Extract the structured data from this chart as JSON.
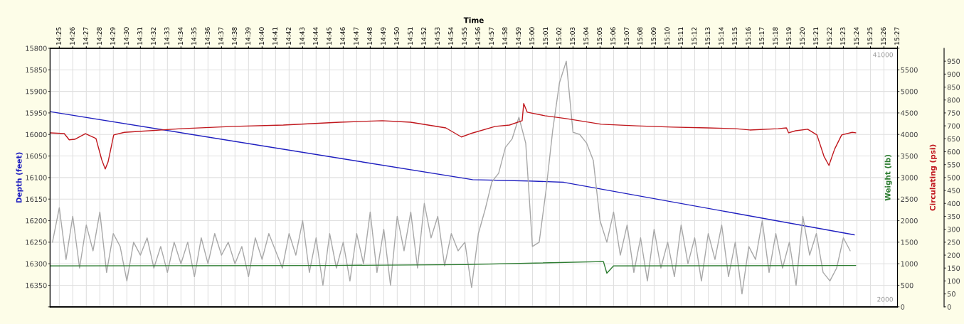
{
  "chart_data": {
    "type": "line",
    "xlabel": "Time",
    "ylabel": "Depth (feet)",
    "y2label": "Weight (lb)",
    "y3label": "Circulating (psi)",
    "xlim": [
      14.4054,
      15.45
    ],
    "xticks": [
      {
        "value": 14.4167,
        "label": "14:25"
      },
      {
        "value": 14.4333,
        "label": "14:26"
      },
      {
        "value": 14.45,
        "label": "14:27"
      },
      {
        "value": 14.4667,
        "label": "14:28"
      },
      {
        "value": 14.4833,
        "label": "14:29"
      },
      {
        "value": 14.5,
        "label": "14:30"
      },
      {
        "value": 14.5167,
        "label": "14:31"
      },
      {
        "value": 14.5333,
        "label": "14:32"
      },
      {
        "value": 14.55,
        "label": "14:33"
      },
      {
        "value": 14.5667,
        "label": "14:34"
      },
      {
        "value": 14.5833,
        "label": "14:35"
      },
      {
        "value": 14.6,
        "label": "14:36"
      },
      {
        "value": 14.6167,
        "label": "14:37"
      },
      {
        "value": 14.6333,
        "label": "14:38"
      },
      {
        "value": 14.65,
        "label": "14:39"
      },
      {
        "value": 14.6667,
        "label": "14:40"
      },
      {
        "value": 14.6833,
        "label": "14:41"
      },
      {
        "value": 14.7,
        "label": "14:42"
      },
      {
        "value": 14.7167,
        "label": "14:43"
      },
      {
        "value": 14.7333,
        "label": "14:44"
      },
      {
        "value": 14.75,
        "label": "14:45"
      },
      {
        "value": 14.7667,
        "label": "14:46"
      },
      {
        "value": 14.7833,
        "label": "14:47"
      },
      {
        "value": 14.8,
        "label": "14:48"
      },
      {
        "value": 14.8167,
        "label": "14:49"
      },
      {
        "value": 14.8333,
        "label": "14:50"
      },
      {
        "value": 14.85,
        "label": "14:51"
      },
      {
        "value": 14.8667,
        "label": "14:52"
      },
      {
        "value": 14.8833,
        "label": "14:53"
      },
      {
        "value": 14.9,
        "label": "14:54"
      },
      {
        "value": 14.9167,
        "label": "14:55"
      },
      {
        "value": 14.9333,
        "label": "14:56"
      },
      {
        "value": 14.95,
        "label": "14:57"
      },
      {
        "value": 14.9667,
        "label": "14:58"
      },
      {
        "value": 14.9833,
        "label": "14:59"
      },
      {
        "value": 15.0,
        "label": "15:00"
      },
      {
        "value": 15.0167,
        "label": "15:01"
      },
      {
        "value": 15.0333,
        "label": "15:02"
      },
      {
        "value": 15.05,
        "label": "15:03"
      },
      {
        "value": 15.0667,
        "label": "15:04"
      },
      {
        "value": 15.0833,
        "label": "15:05"
      },
      {
        "value": 15.1,
        "label": "15:06"
      },
      {
        "value": 15.1167,
        "label": "15:07"
      },
      {
        "value": 15.1333,
        "label": "15:08"
      },
      {
        "value": 15.15,
        "label": "15:09"
      },
      {
        "value": 15.1667,
        "label": "15:10"
      },
      {
        "value": 15.1833,
        "label": "15:11"
      },
      {
        "value": 15.2,
        "label": "15:12"
      },
      {
        "value": 15.2167,
        "label": "15:13"
      },
      {
        "value": 15.2333,
        "label": "15:14"
      },
      {
        "value": 15.25,
        "label": "15:15"
      },
      {
        "value": 15.2667,
        "label": "15:16"
      },
      {
        "value": 15.2833,
        "label": "15:17"
      },
      {
        "value": 15.3,
        "label": "15:18"
      },
      {
        "value": 15.3167,
        "label": "15:19"
      },
      {
        "value": 15.3333,
        "label": "15:20"
      },
      {
        "value": 15.35,
        "label": "15:21"
      },
      {
        "value": 15.3667,
        "label": "15:22"
      },
      {
        "value": 15.3833,
        "label": "15:23"
      },
      {
        "value": 15.4,
        "label": "15:24"
      },
      {
        "value": 15.4167,
        "label": "15:25"
      },
      {
        "value": 15.4333,
        "label": "15:26"
      },
      {
        "value": 15.45,
        "label": "15:27"
      }
    ],
    "ylim": [
      16400,
      15800
    ],
    "yticks": [
      15800,
      15850,
      15900,
      15950,
      16000,
      16050,
      16100,
      16150,
      16200,
      16250,
      16300,
      16350,
      {
        "value": 16400,
        "label": null
      }
    ],
    "y2lim": [
      0,
      6000
    ],
    "y2ticks": [
      0,
      500,
      1000,
      1500,
      2000,
      2500,
      3000,
      3500,
      4000,
      4500,
      5000,
      5500,
      {
        "value": 6000,
        "label": null
      }
    ],
    "y3lim": [
      0,
      1000
    ],
    "y3ticks": [
      0,
      50,
      100,
      150,
      200,
      250,
      300,
      350,
      400,
      450,
      500,
      550,
      600,
      650,
      700,
      750,
      800,
      850,
      900,
      950
    ],
    "grid": true,
    "legend": false,
    "annotations": [
      "41000",
      "2000"
    ],
    "series": [
      {
        "axis": "y2",
        "color": "#a8a8a8",
        "x": [
          14.4083,
          14.4167,
          14.425,
          14.4333,
          14.4417,
          14.45,
          14.4583,
          14.4667,
          14.475,
          14.4833,
          14.4917,
          14.5,
          14.5083,
          14.5167,
          14.525,
          14.5333,
          14.5417,
          14.55,
          14.5583,
          14.5667,
          14.575,
          14.5833,
          14.5917,
          14.6,
          14.6083,
          14.6167,
          14.625,
          14.6333,
          14.6417,
          14.65,
          14.6583,
          14.6667,
          14.675,
          14.6833,
          14.6917,
          14.7,
          14.7083,
          14.7167,
          14.725,
          14.7333,
          14.7417,
          14.75,
          14.7583,
          14.7667,
          14.775,
          14.7833,
          14.7917,
          14.8,
          14.8083,
          14.8167,
          14.825,
          14.8333,
          14.8417,
          14.85,
          14.8583,
          14.8667,
          14.875,
          14.8833,
          14.8917,
          14.9,
          14.9083,
          14.9167,
          14.925,
          14.9333,
          14.9417,
          14.95,
          14.9583,
          14.9667,
          14.975,
          14.9833,
          14.9917,
          15.0,
          15.0083,
          15.0167,
          15.025,
          15.0333,
          15.0417,
          15.05,
          15.0583,
          15.0667,
          15.075,
          15.0833,
          15.0917,
          15.1,
          15.1083,
          15.1167,
          15.125,
          15.1333,
          15.1417,
          15.15,
          15.1583,
          15.1667,
          15.175,
          15.1833,
          15.1917,
          15.2,
          15.2083,
          15.2167,
          15.225,
          15.2333,
          15.2417,
          15.25,
          15.2583,
          15.2667,
          15.275,
          15.2833,
          15.2917,
          15.3,
          15.3083,
          15.3167,
          15.325,
          15.3333,
          15.3417,
          15.35,
          15.3583,
          15.3667,
          15.375,
          15.3833,
          15.3917
        ],
        "values": [
          1500,
          2300,
          1100,
          2100,
          900,
          1900,
          1300,
          2200,
          800,
          1700,
          1400,
          600,
          1500,
          1200,
          1600,
          900,
          1400,
          800,
          1500,
          1000,
          1500,
          700,
          1600,
          1000,
          1700,
          1200,
          1500,
          1000,
          1400,
          700,
          1600,
          1100,
          1700,
          1300,
          900,
          1700,
          1200,
          2000,
          800,
          1600,
          500,
          1700,
          900,
          1500,
          600,
          1700,
          1000,
          2200,
          800,
          1800,
          500,
          2100,
          1300,
          2200,
          900,
          2400,
          1600,
          2100,
          950,
          1700,
          1300,
          1500,
          450,
          1700,
          2260,
          2900,
          3100,
          3700,
          3900,
          4400,
          3800,
          1400,
          1500,
          2700,
          4100,
          5200,
          5700,
          4050,
          4000,
          3800,
          3400,
          2000,
          1500,
          2200,
          1200,
          1900,
          800,
          1600,
          600,
          1800,
          900,
          1500,
          700,
          1900,
          1000,
          1600,
          600,
          1700,
          1100,
          1900,
          700,
          1500,
          300,
          1400,
          1100,
          2000,
          800,
          1700,
          900,
          1500,
          500,
          2100,
          1200,
          1700,
          800,
          600,
          900,
          1600,
          1300
        ]
      },
      {
        "axis": "y2",
        "color": "#2e7d32",
        "x": [
          14.4054,
          14.75,
          14.9167,
          15.0875,
          15.0917,
          15.1,
          15.3985
        ],
        "values": [
          950,
          960,
          980,
          1050,
          780,
          950,
          960
        ]
      },
      {
        "axis": "y3",
        "color": "#c0181e",
        "x": [
          14.4054,
          14.4228,
          14.4289,
          14.4358,
          14.4489,
          14.4619,
          14.469,
          14.4733,
          14.4768,
          14.4838,
          14.4969,
          14.5667,
          14.6319,
          14.6929,
          14.7625,
          14.8148,
          14.8497,
          14.8932,
          14.9124,
          14.9237,
          14.9542,
          14.9717,
          14.9873,
          14.9892,
          14.9935,
          15.0152,
          15.0413,
          15.0849,
          15.1285,
          15.172,
          15.2157,
          15.2505,
          15.2679,
          15.3027,
          15.3131,
          15.3158,
          15.3245,
          15.3393,
          15.3507,
          15.3594,
          15.3655,
          15.3725,
          15.3812,
          15.3942,
          15.3985
        ],
        "values": [
          673,
          670,
          646,
          648,
          670,
          651,
          569,
          533,
          560,
          665,
          675,
          689,
          698,
          703,
          714,
          720,
          714,
          692,
          657,
          670,
          698,
          703,
          720,
          786,
          753,
          739,
          728,
          706,
          700,
          695,
          692,
          689,
          684,
          689,
          692,
          673,
          681,
          687,
          665,
          582,
          547,
          610,
          665,
          675,
          673
        ]
      },
      {
        "axis": "y",
        "color": "#2020c0",
        "x": [
          14.4054,
          14.9263,
          14.996,
          15.0387,
          15.3968
        ],
        "values": [
          15947,
          16105,
          16108,
          16111,
          16233
        ]
      }
    ]
  }
}
